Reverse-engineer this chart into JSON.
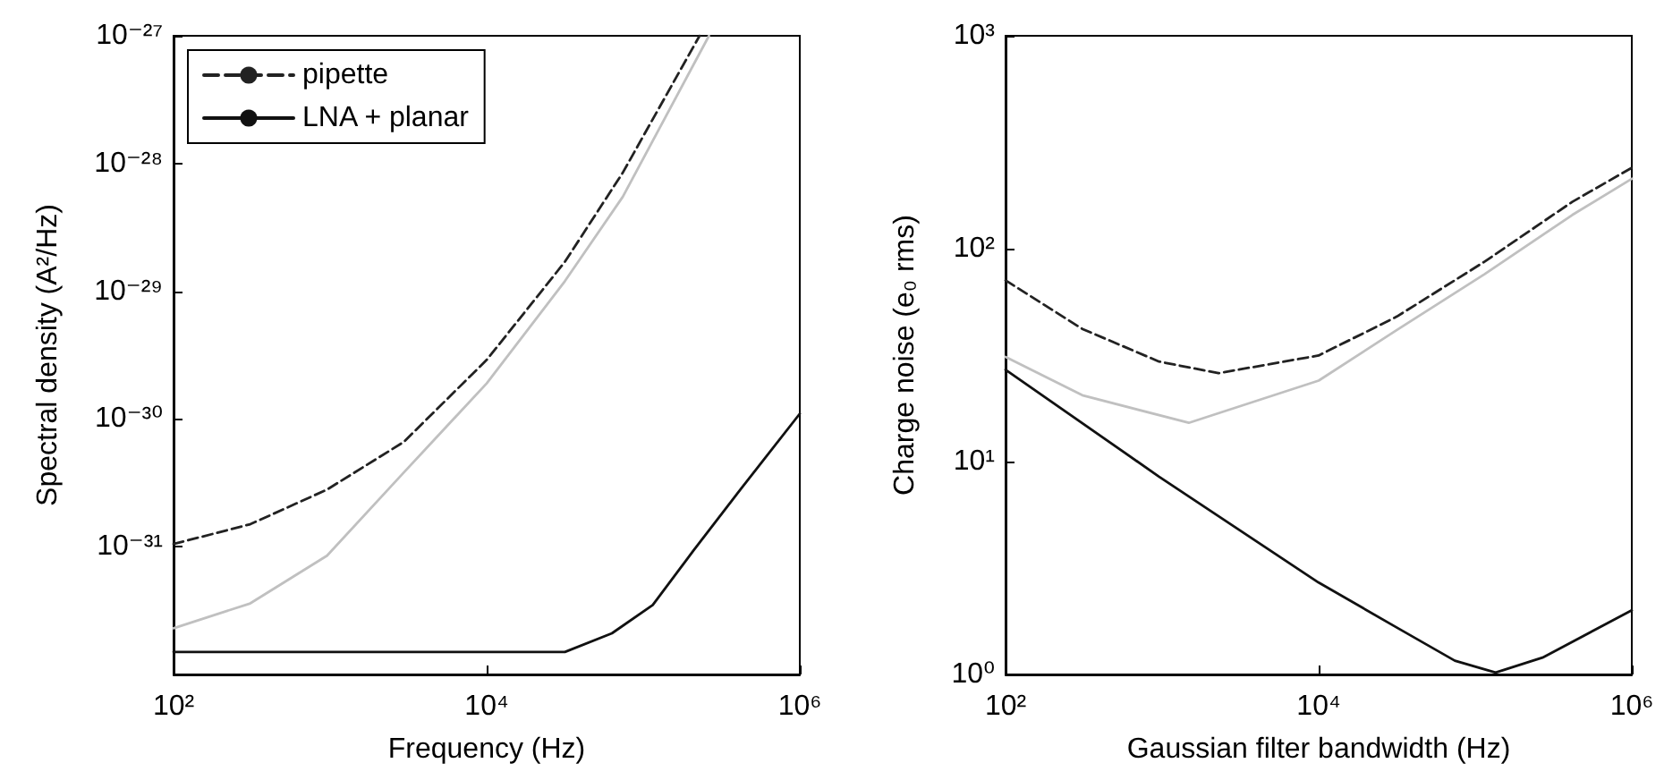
{
  "chart_data": [
    {
      "type": "line",
      "xlabel": "Frequency (Hz)",
      "ylabel": "Spectral density (A²/Hz)",
      "log": "xy",
      "legend": "top left",
      "marker": "none",
      "xlim": [
        100,
        1000000
      ],
      "xticks": [
        {
          "value": 100,
          "label": "10²"
        },
        {
          "value": 10000,
          "label": "10⁴"
        },
        {
          "value": 1000000,
          "label": "10⁶"
        }
      ],
      "ylim": [
        1e-32,
        1e-27
      ],
      "yticks": [
        {
          "value": 1e-32,
          "label": null
        },
        {
          "value": 1e-31,
          "label": "10⁻³¹"
        },
        {
          "value": 1e-30,
          "label": "10⁻³⁰"
        },
        {
          "value": 1e-29,
          "label": "10⁻²⁹"
        },
        {
          "value": 1e-28,
          "label": "10⁻²⁸"
        },
        {
          "value": 1e-27,
          "label": "10⁻²⁷"
        }
      ],
      "series": [
        {
          "color": "#c0c0c0",
          "line_style": "solid",
          "x": [
            100,
            309,
            955,
            2950,
            10000,
            31600,
            74100,
            263000
          ],
          "values": [
            2.3e-32,
            3.6e-32,
            8.5e-32,
            3.8e-31,
            1.9e-30,
            1.2e-29,
            5.5e-29,
            1e-27
          ]
        },
        {
          "name": "pipette",
          "color": "#222222",
          "line_style": "dashed",
          "x": [
            100,
            309,
            955,
            2950,
            10000,
            31600,
            74100,
            229000
          ],
          "values": [
            1.05e-31,
            1.5e-31,
            2.8e-31,
            6.6e-31,
            2.9e-30,
            1.7e-29,
            8.5e-29,
            1e-27
          ]
        },
        {
          "name": "LNA + planar",
          "color": "#111111",
          "line_style": "solid",
          "x": [
            100,
            10000,
            31600,
            63100,
            115000,
            209000,
            417000,
            1000000
          ],
          "values": [
            1.5e-32,
            1.5e-32,
            1.5e-32,
            2.1e-32,
            3.5e-32,
            9.3e-32,
            2.8e-31,
            1.1e-30
          ]
        }
      ]
    },
    {
      "type": "line",
      "xlabel": "Gaussian filter bandwidth (Hz)",
      "ylabel": "Charge noise (e₀ rms)",
      "log": "xy",
      "marker": "none",
      "xlim": [
        100,
        1000000
      ],
      "xticks": [
        {
          "value": 100,
          "label": "10²"
        },
        {
          "value": 10000,
          "label": "10⁴"
        },
        {
          "value": 1000000,
          "label": "10⁶"
        }
      ],
      "ylim": [
        1,
        1000
      ],
      "yticks": [
        {
          "value": 1,
          "label": "10⁰"
        },
        {
          "value": 10,
          "label": "10¹"
        },
        {
          "value": 100,
          "label": "10²"
        },
        {
          "value": 1000,
          "label": "10³"
        }
      ],
      "series": [
        {
          "color": "#c0c0c0",
          "line_style": "solid",
          "x": [
            100,
            309,
            1480,
            10000,
            31600,
            115000,
            417000,
            1000000
          ],
          "values": [
            31,
            20.5,
            15.2,
            24,
            41.5,
            76,
            144,
            213
          ]
        },
        {
          "color": "#222222",
          "line_style": "dashed",
          "x": [
            100,
            309,
            955,
            2290,
            10000,
            31600,
            115000,
            417000,
            1000000
          ],
          "values": [
            71,
            42,
            29.5,
            26,
            31.5,
            48,
            87,
            166,
            240
          ]
        },
        {
          "color": "#111111",
          "line_style": "solid",
          "x": [
            100,
            955,
            10000,
            31600,
            74100,
            135000,
            269000,
            1000000
          ],
          "values": [
            27,
            8.5,
            2.7,
            1.66,
            1.16,
            1.02,
            1.2,
            2.0
          ]
        }
      ]
    }
  ]
}
